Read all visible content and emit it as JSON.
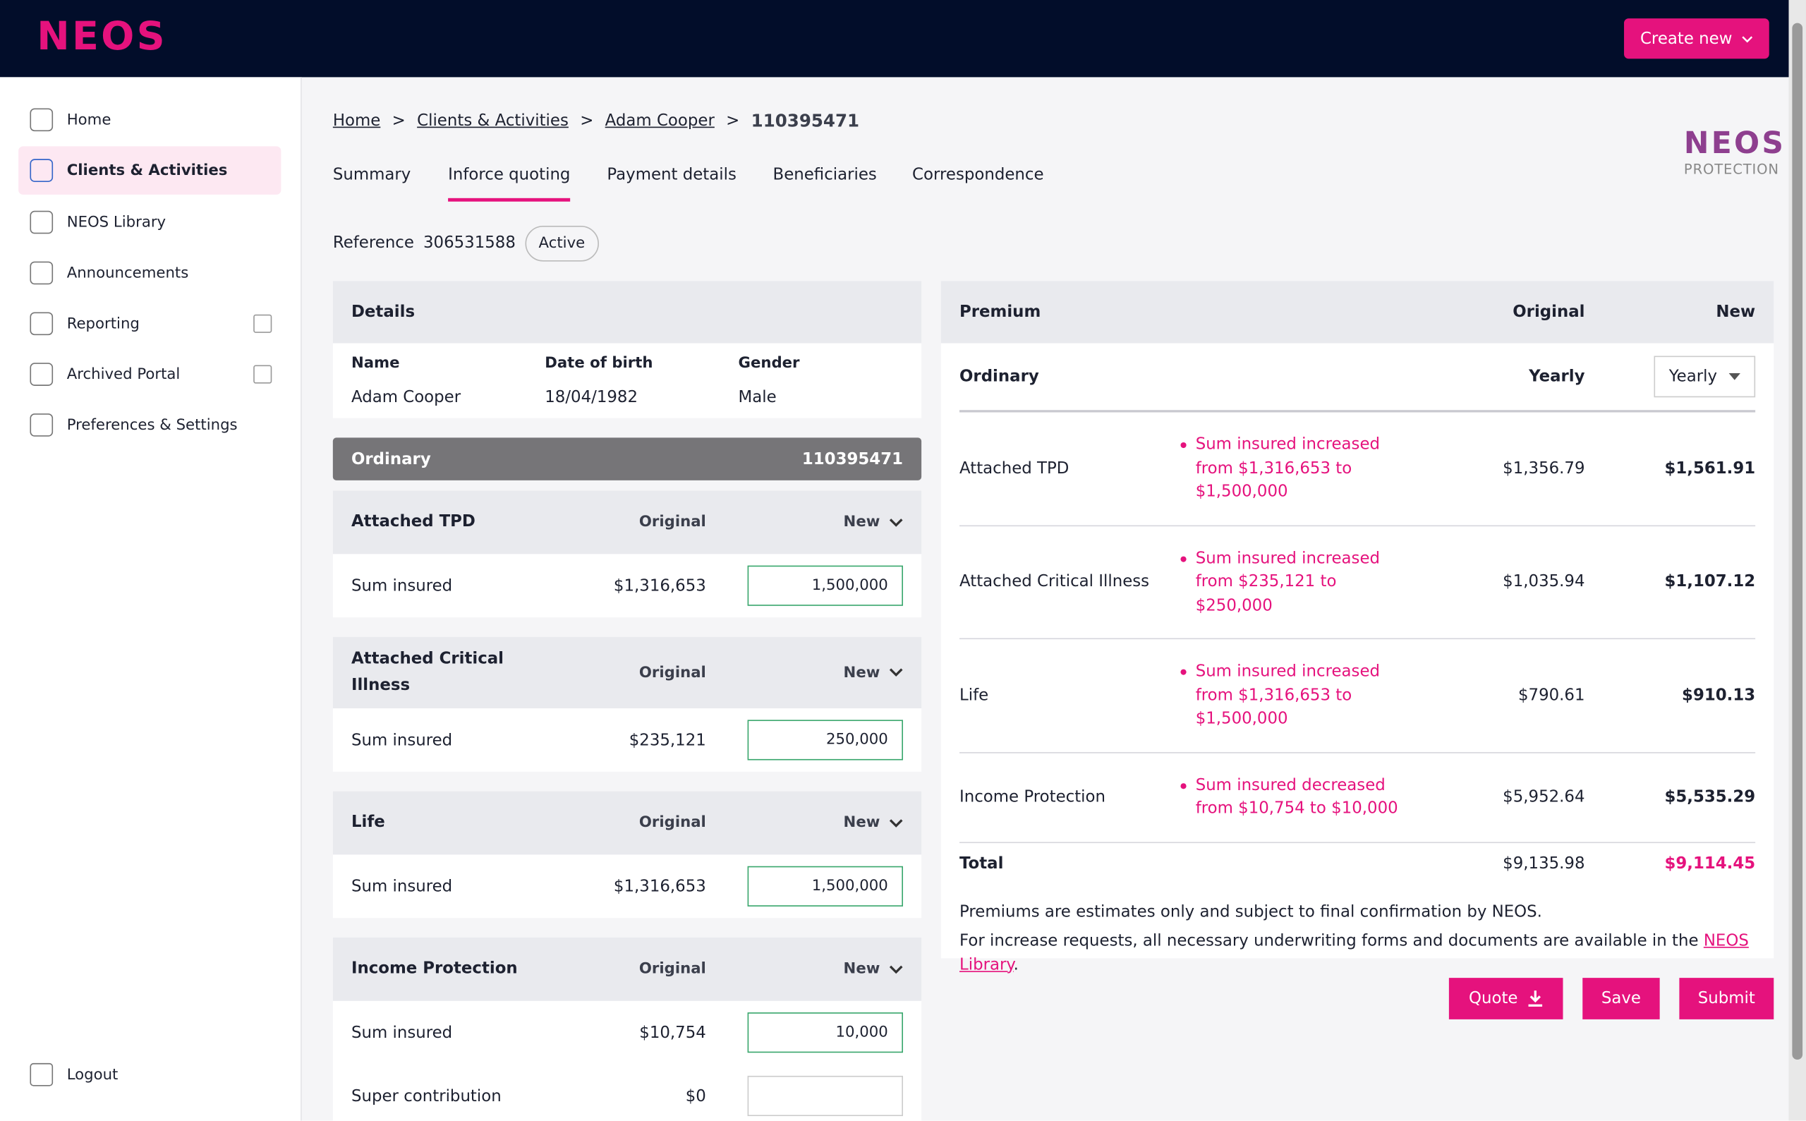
{
  "header": {
    "logo": "NEOS",
    "create_button": "Create new"
  },
  "sidebar": {
    "nav": [
      "Home",
      "Clients & Activities",
      "NEOS Library",
      "Announcements",
      "Reporting",
      "Archived Portal",
      "Preferences & Settings"
    ],
    "logout": "Logout"
  },
  "breadcrumb": [
    "Home",
    "Clients & Activities",
    "Adam Cooper",
    "110395471"
  ],
  "brand": {
    "name": "NEOS",
    "tagline": "PROTECTION"
  },
  "tabs": [
    "Summary",
    "Inforce quoting",
    "Payment details",
    "Beneficiaries",
    "Correspondence"
  ],
  "reference": {
    "label": "Reference",
    "number": "306531588",
    "status": "Active"
  },
  "details": {
    "title": "Details",
    "headers": [
      "Name",
      "Date of birth",
      "Gender"
    ],
    "values": [
      "Adam Cooper",
      "18/04/1982",
      "Male"
    ]
  },
  "policy": {
    "name": "Ordinary",
    "number": "110395471"
  },
  "covers": [
    {
      "name": "Attached TPD",
      "original_header": "Original",
      "new_header": "New",
      "rows": [
        {
          "label": "Sum insured",
          "original": "$1,316,653",
          "new": "1,500,000"
        }
      ]
    },
    {
      "name": "Attached Critical Illness",
      "original_header": "Original",
      "new_header": "New",
      "rows": [
        {
          "label": "Sum insured",
          "original": "$235,121",
          "new": "250,000"
        }
      ]
    },
    {
      "name": "Life",
      "original_header": "Original",
      "new_header": "New",
      "rows": [
        {
          "label": "Sum insured",
          "original": "$1,316,653",
          "new": "1,500,000"
        }
      ]
    },
    {
      "name": "Income Protection",
      "original_header": "Original",
      "new_header": "New",
      "rows": [
        {
          "label": "Sum insured",
          "original": "$10,754",
          "new": "10,000"
        },
        {
          "label": "Super contribution",
          "original": "$0"
        }
      ]
    }
  ],
  "premium": {
    "title": "Premium",
    "original_header": "Original",
    "new_header": "New",
    "group": "Ordinary",
    "frequency": "Yearly",
    "frequency_select": "Yearly",
    "rows": [
      {
        "name": "Attached TPD",
        "note": "Sum insured increased from $1,316,653 to $1,500,000",
        "original": "$1,356.79",
        "new": "$1,561.91"
      },
      {
        "name": "Attached Critical Illness",
        "note": "Sum insured increased from $235,121 to $250,000",
        "original": "$1,035.94",
        "new": "$1,107.12"
      },
      {
        "name": "Life",
        "note": "Sum insured increased from $1,316,653 to $1,500,000",
        "original": "$790.61",
        "new": "$910.13"
      },
      {
        "name": "Income Protection",
        "note": "Sum insured decreased from $10,754 to $10,000",
        "original": "$5,952.64",
        "new": "$5,535.29"
      }
    ],
    "total": {
      "label": "Total",
      "original": "$9,135.98",
      "new": "$9,114.45"
    },
    "disclaimer": "Premiums are estimates only and subject to final confirmation by NEOS.",
    "library_note": "For increase requests, all necessary underwriting forms and documents are available in the",
    "library_link": "NEOS Library",
    "period": "."
  },
  "actions": [
    "Quote",
    "Save",
    "Submit"
  ]
}
